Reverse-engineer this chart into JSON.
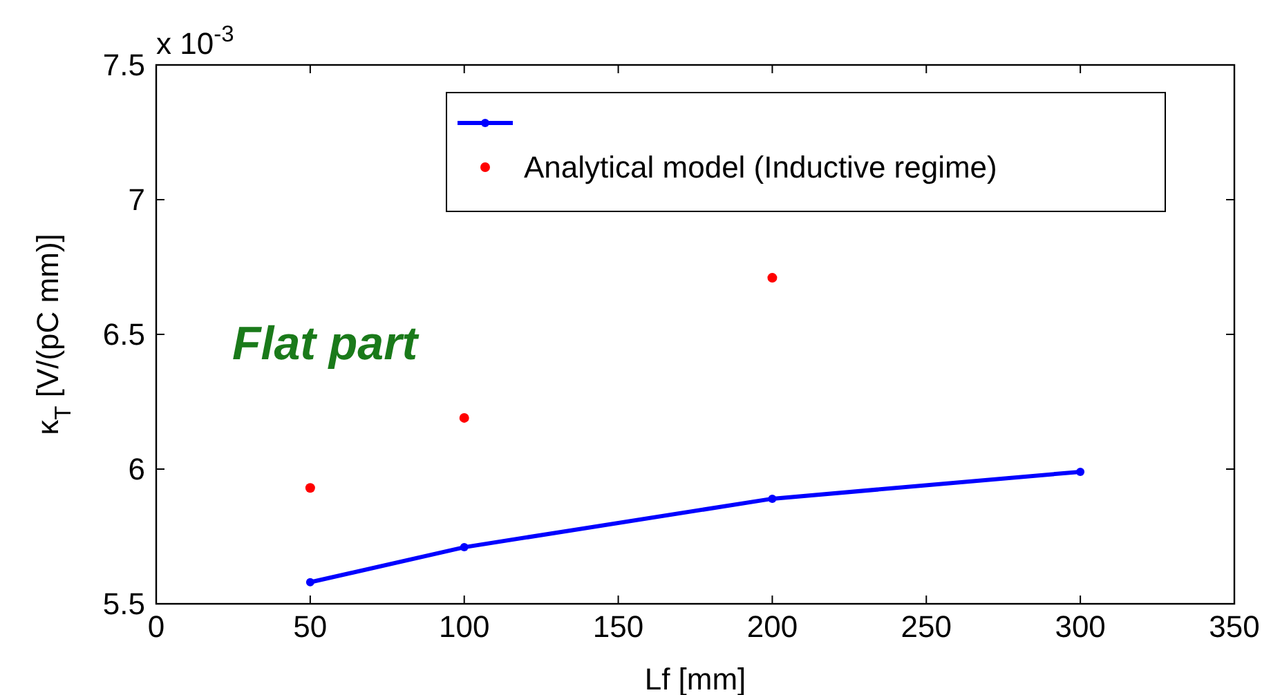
{
  "chart_data": {
    "type": "line",
    "xlabel": "Lf [mm]",
    "ylabel": "κ$_{T}$ [V/(pC mm)]",
    "annotations": [
      "x 10$^{-3}$",
      "Flat part"
    ],
    "xlim": [
      0,
      350
    ],
    "xticks": [
      0,
      50,
      100,
      150,
      200,
      250,
      300,
      350
    ],
    "ylim": [
      5.5,
      7.5
    ],
    "yticks": [
      5.5,
      6,
      6.5,
      7,
      7.5
    ],
    "grid": false,
    "legend": "top right",
    "marker": "circle",
    "line_style": "solid",
    "series": [
      {
        "color": "#0000ff",
        "x": [
          50,
          100,
          200,
          300
        ],
        "values": [
          5.58,
          5.71,
          5.89,
          5.99
        ]
      },
      {
        "type": "scatter",
        "name": "Analytical model (Inductive regime)",
        "color": "#ff0000",
        "x": [
          50,
          100,
          200
        ],
        "values": [
          5.93,
          6.19,
          6.71
        ]
      }
    ]
  }
}
